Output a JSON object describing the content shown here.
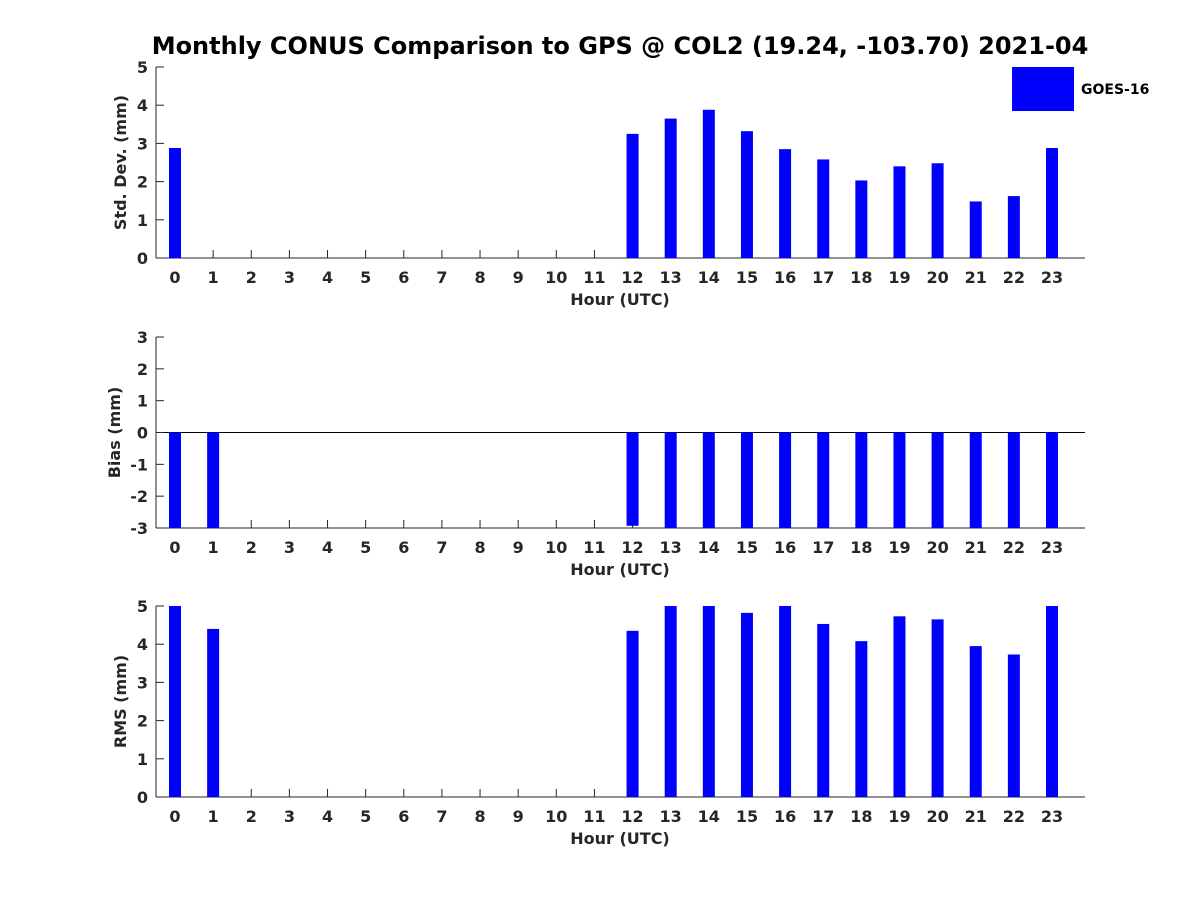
{
  "figure": {
    "title": "Monthly CONUS Comparison to GPS @ COL2 (19.24, -103.70) 2021-04"
  },
  "legend": {
    "label": "GOES-16",
    "color": "#0000ff",
    "placement": "top-right"
  },
  "colors": {
    "bar": "#0000ff",
    "axis": "#262626",
    "background": "#ffffff"
  },
  "chart_data": [
    {
      "type": "bar",
      "panel": "std",
      "xlabel": "Hour (UTC)",
      "ylabel": "Std. Dev. (mm)",
      "ylim": [
        0,
        5
      ],
      "yticks": [
        "0",
        "1",
        "2",
        "3",
        "4",
        "5"
      ],
      "categories": [
        "0",
        "1",
        "2",
        "3",
        "4",
        "5",
        "6",
        "7",
        "8",
        "9",
        "10",
        "11",
        "12",
        "13",
        "14",
        "15",
        "16",
        "17",
        "18",
        "19",
        "20",
        "21",
        "22",
        "23"
      ],
      "series": [
        {
          "name": "GOES-16",
          "values": [
            2.88,
            null,
            null,
            null,
            null,
            null,
            null,
            null,
            null,
            null,
            null,
            null,
            3.25,
            3.65,
            3.88,
            3.32,
            2.85,
            2.58,
            2.03,
            2.4,
            2.48,
            1.48,
            1.62,
            2.88
          ]
        }
      ]
    },
    {
      "type": "bar",
      "panel": "bias",
      "xlabel": "Hour (UTC)",
      "ylabel": "Bias (mm)",
      "ylim": [
        -3,
        3
      ],
      "yticks": [
        "-3",
        "-2",
        "-1",
        "0",
        "1",
        "2",
        "3"
      ],
      "categories": [
        "0",
        "1",
        "2",
        "3",
        "4",
        "5",
        "6",
        "7",
        "8",
        "9",
        "10",
        "11",
        "12",
        "13",
        "14",
        "15",
        "16",
        "17",
        "18",
        "19",
        "20",
        "21",
        "22",
        "23"
      ],
      "series": [
        {
          "name": "GOES-16",
          "values": [
            -3,
            -3,
            null,
            null,
            null,
            null,
            null,
            null,
            null,
            null,
            null,
            null,
            -2.93,
            -3,
            -3,
            -3,
            -3,
            -3,
            -3,
            -3,
            -3,
            -3,
            -3,
            -3
          ]
        }
      ]
    },
    {
      "type": "bar",
      "panel": "rms",
      "xlabel": "Hour (UTC)",
      "ylabel": "RMS (mm)",
      "ylim": [
        0,
        5
      ],
      "yticks": [
        "0",
        "1",
        "2",
        "3",
        "4",
        "5"
      ],
      "categories": [
        "0",
        "1",
        "2",
        "3",
        "4",
        "5",
        "6",
        "7",
        "8",
        "9",
        "10",
        "11",
        "12",
        "13",
        "14",
        "15",
        "16",
        "17",
        "18",
        "19",
        "20",
        "21",
        "22",
        "23"
      ],
      "series": [
        {
          "name": "GOES-16",
          "values": [
            5,
            4.4,
            null,
            null,
            null,
            null,
            null,
            null,
            null,
            null,
            null,
            null,
            4.35,
            5,
            5,
            4.82,
            5,
            4.53,
            4.08,
            4.73,
            4.65,
            3.95,
            3.73,
            5
          ]
        }
      ]
    }
  ]
}
